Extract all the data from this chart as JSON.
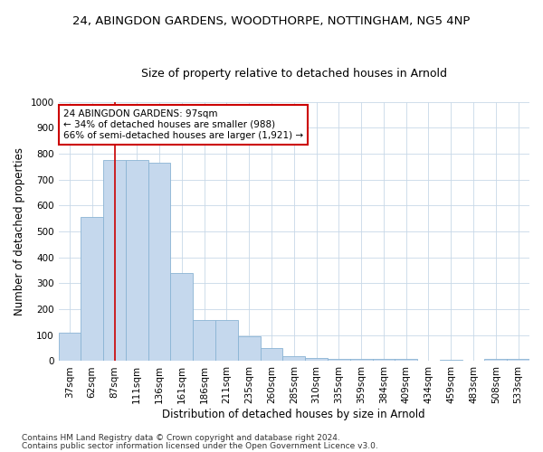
{
  "title1": "24, ABINGDON GARDENS, WOODTHORPE, NOTTINGHAM, NG5 4NP",
  "title2": "Size of property relative to detached houses in Arnold",
  "xlabel": "Distribution of detached houses by size in Arnold",
  "ylabel": "Number of detached properties",
  "categories": [
    "37sqm",
    "62sqm",
    "87sqm",
    "111sqm",
    "136sqm",
    "161sqm",
    "186sqm",
    "211sqm",
    "235sqm",
    "260sqm",
    "285sqm",
    "310sqm",
    "335sqm",
    "359sqm",
    "384sqm",
    "409sqm",
    "434sqm",
    "459sqm",
    "483sqm",
    "508sqm",
    "533sqm"
  ],
  "values": [
    110,
    555,
    775,
    775,
    765,
    340,
    160,
    160,
    95,
    50,
    18,
    12,
    10,
    8,
    8,
    8,
    0,
    5,
    0,
    8,
    8
  ],
  "bar_color": "#c5d8ed",
  "bar_edge_color": "#8ab4d4",
  "vline_x_index": 2.0,
  "vline_color": "#cc0000",
  "annotation_text": "24 ABINGDON GARDENS: 97sqm\n← 34% of detached houses are smaller (988)\n66% of semi-detached houses are larger (1,921) →",
  "annotation_box_color": "#ffffff",
  "annotation_box_edge": "#cc0000",
  "ylim": [
    0,
    1000
  ],
  "yticks": [
    0,
    100,
    200,
    300,
    400,
    500,
    600,
    700,
    800,
    900,
    1000
  ],
  "footer1": "Contains HM Land Registry data © Crown copyright and database right 2024.",
  "footer2": "Contains public sector information licensed under the Open Government Licence v3.0.",
  "bg_color": "#ffffff",
  "grid_color": "#c8d8e8",
  "title1_fontsize": 9.5,
  "title2_fontsize": 9,
  "xlabel_fontsize": 8.5,
  "ylabel_fontsize": 8.5,
  "tick_fontsize": 7.5,
  "annotation_fontsize": 7.5,
  "footer_fontsize": 6.5
}
